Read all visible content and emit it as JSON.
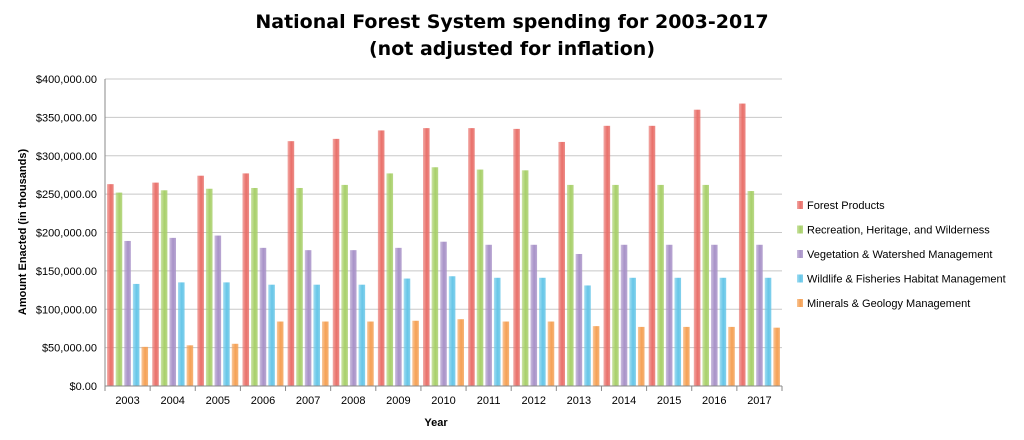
{
  "chart_data": {
    "type": "bar",
    "title": "National Forest System spending for 2003-2017",
    "subtitle": "(not adjusted for inflation)",
    "xlabel": "Year",
    "ylabel": "Amount Enacted  (in thousands)",
    "ylim": [
      0,
      400000
    ],
    "yticks": [
      "$0.00",
      "$50,000.00",
      "$100,000.00",
      "$150,000.00",
      "$200,000.00",
      "$250,000.00",
      "$300,000.00",
      "$350,000.00",
      "$400,000.00"
    ],
    "grid": true,
    "legend_position": "right",
    "categories": [
      "2003",
      "2004",
      "2005",
      "2006",
      "2007",
      "2008",
      "2009",
      "2010",
      "2011",
      "2012",
      "2013",
      "2014",
      "2015",
      "2016",
      "2017"
    ],
    "series": [
      {
        "name": "Forest Products",
        "color": "#e9706a",
        "values": [
          263000,
          265000,
          274000,
          277000,
          319000,
          322000,
          333000,
          336000,
          336000,
          335000,
          318000,
          339000,
          339000,
          360000,
          368000
        ]
      },
      {
        "name": "Recreation, Heritage, and Wilderness",
        "color": "#a8d06a",
        "values": [
          252000,
          255000,
          257000,
          258000,
          258000,
          262000,
          277000,
          285000,
          282000,
          281000,
          262000,
          262000,
          262000,
          262000,
          254000
        ]
      },
      {
        "name": "Vegetation & Watershed Management",
        "color": "#a892c8",
        "values": [
          189000,
          193000,
          196000,
          180000,
          177000,
          177000,
          180000,
          188000,
          184000,
          184000,
          172000,
          184000,
          184000,
          184000,
          184000
        ]
      },
      {
        "name": "Wildlife & Fisheries Habitat Management",
        "color": "#66c6e8",
        "values": [
          133000,
          135000,
          135000,
          132000,
          132000,
          132000,
          140000,
          143000,
          141000,
          141000,
          131000,
          141000,
          141000,
          141000,
          141000
        ]
      },
      {
        "name": "Minerals & Geology Management",
        "color": "#f5a155",
        "values": [
          51000,
          53000,
          55000,
          84000,
          84000,
          84000,
          85000,
          87000,
          84000,
          84000,
          78000,
          77000,
          77000,
          77000,
          76000
        ]
      }
    ]
  }
}
